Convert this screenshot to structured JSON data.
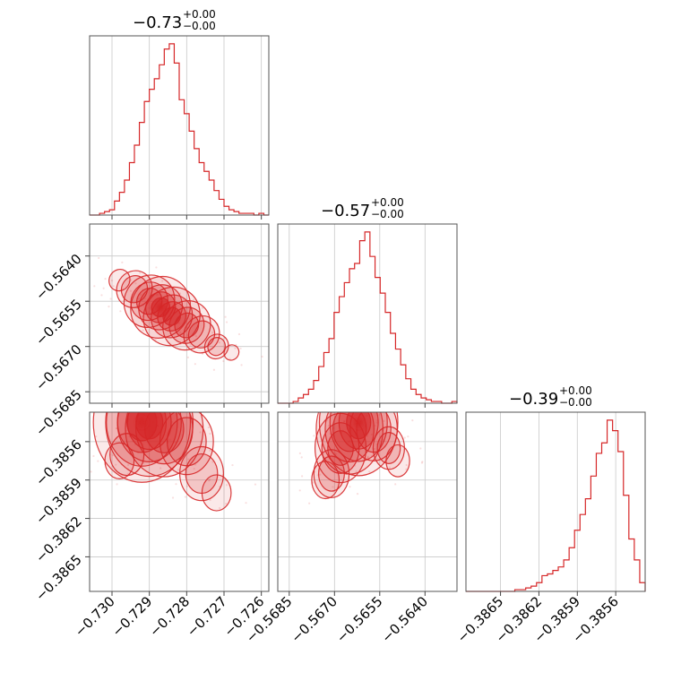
{
  "chart_data": {
    "type": "corner",
    "color": "#d62728",
    "parameters": [
      {
        "title_main": "−0.73",
        "title_plus": "+0.00",
        "title_minus": "−0.00",
        "range": [
          -0.7306,
          -0.7258
        ],
        "ticks": [
          -0.73,
          -0.729,
          -0.728,
          -0.727,
          -0.726
        ],
        "tick_labels": [
          "−0.730",
          "−0.729",
          "−0.728",
          "−0.727",
          "−0.726"
        ],
        "hist_density": [
          0,
          0,
          0.01,
          0.02,
          0.03,
          0.08,
          0.13,
          0.2,
          0.3,
          0.4,
          0.53,
          0.65,
          0.72,
          0.78,
          0.86,
          0.95,
          0.98,
          0.87,
          0.66,
          0.58,
          0.48,
          0.38,
          0.3,
          0.25,
          0.2,
          0.14,
          0.09,
          0.05,
          0.03,
          0.02,
          0.01,
          0.01,
          0.01,
          0,
          0.01,
          0
        ]
      },
      {
        "title_main": "−0.57",
        "title_plus": "+0.00",
        "title_minus": "−0.00",
        "range": [
          -0.56888,
          -0.56294
        ],
        "ticks": [
          -0.5685,
          -0.567,
          -0.5655,
          -0.564
        ],
        "tick_labels": [
          "−0.5685",
          "−0.5670",
          "−0.5655",
          "−0.5640"
        ],
        "hist_density": [
          0,
          0,
          0,
          0.01,
          0.03,
          0.05,
          0.08,
          0.13,
          0.21,
          0.29,
          0.37,
          0.52,
          0.61,
          0.69,
          0.77,
          0.8,
          0.93,
          0.98,
          0.84,
          0.72,
          0.63,
          0.52,
          0.4,
          0.31,
          0.22,
          0.14,
          0.08,
          0.05,
          0.03,
          0.02,
          0.01,
          0.01,
          0,
          0,
          0.01
        ]
      },
      {
        "title_main": "−0.39",
        "title_plus": "+0.00",
        "title_minus": "−0.00",
        "range": [
          -0.38677,
          -0.38537
        ],
        "ticks": [
          -0.3865,
          -0.3862,
          -0.3859,
          -0.3856
        ],
        "tick_labels": [
          "−0.3865",
          "−0.3862",
          "−0.3859",
          "−0.3856"
        ],
        "hist_density": [
          0,
          0,
          0,
          0,
          0,
          0,
          0,
          0,
          0,
          0.01,
          0.01,
          0.02,
          0.03,
          0.05,
          0.09,
          0.1,
          0.12,
          0.14,
          0.18,
          0.25,
          0.35,
          0.44,
          0.53,
          0.66,
          0.79,
          0.85,
          0.98,
          0.92,
          0.8,
          0.55,
          0.3,
          0.18,
          0.05
        ]
      }
    ],
    "pairs": [
      {
        "row": 1,
        "col": 0,
        "type": "kde-contour",
        "points": [
          [
            -0.7298,
            -0.5648
          ],
          [
            -0.7294,
            -0.5651
          ],
          [
            -0.729,
            -0.5655
          ],
          [
            -0.7287,
            -0.5657
          ],
          [
            -0.7284,
            -0.566
          ],
          [
            -0.728,
            -0.5663
          ],
          [
            -0.7276,
            -0.5666
          ],
          [
            -0.7272,
            -0.567
          ],
          [
            -0.7268,
            -0.5672
          ]
        ],
        "density": [
          0.35,
          0.6,
          0.85,
          1.0,
          0.95,
          0.8,
          0.6,
          0.4,
          0.25
        ],
        "spread_x": 0.0003,
        "spread_y": 0.0004,
        "angle_deg": 32
      },
      {
        "row": 2,
        "col": 0,
        "type": "kde-contour",
        "points": [
          [
            -0.7292,
            -0.38545
          ],
          [
            -0.729,
            -0.38545
          ],
          [
            -0.7286,
            -0.3855
          ],
          [
            -0.728,
            -0.3856
          ],
          [
            -0.7276,
            -0.38585
          ],
          [
            -0.7272,
            -0.386
          ],
          [
            -0.7296,
            -0.3857
          ],
          [
            -0.7298,
            -0.38575
          ]
        ],
        "density": [
          1.0,
          0.9,
          0.8,
          0.55,
          0.45,
          0.3,
          0.35,
          0.3
        ],
        "spread_x": 0.0005,
        "spread_y": 0.00018,
        "angle_deg": 0
      },
      {
        "row": 2,
        "col": 1,
        "type": "kde-contour",
        "points": [
          [
            -0.5662,
            -0.38545
          ],
          [
            -0.5665,
            -0.3855
          ],
          [
            -0.5668,
            -0.38565
          ],
          [
            -0.5671,
            -0.38585
          ],
          [
            -0.5673,
            -0.3859
          ],
          [
            -0.5657,
            -0.3855
          ],
          [
            -0.5652,
            -0.38565
          ],
          [
            -0.5649,
            -0.38575
          ]
        ],
        "density": [
          1.0,
          0.85,
          0.65,
          0.45,
          0.35,
          0.6,
          0.4,
          0.3
        ],
        "spread_x": 0.0005,
        "spread_y": 0.00016,
        "angle_deg": 0
      }
    ]
  }
}
